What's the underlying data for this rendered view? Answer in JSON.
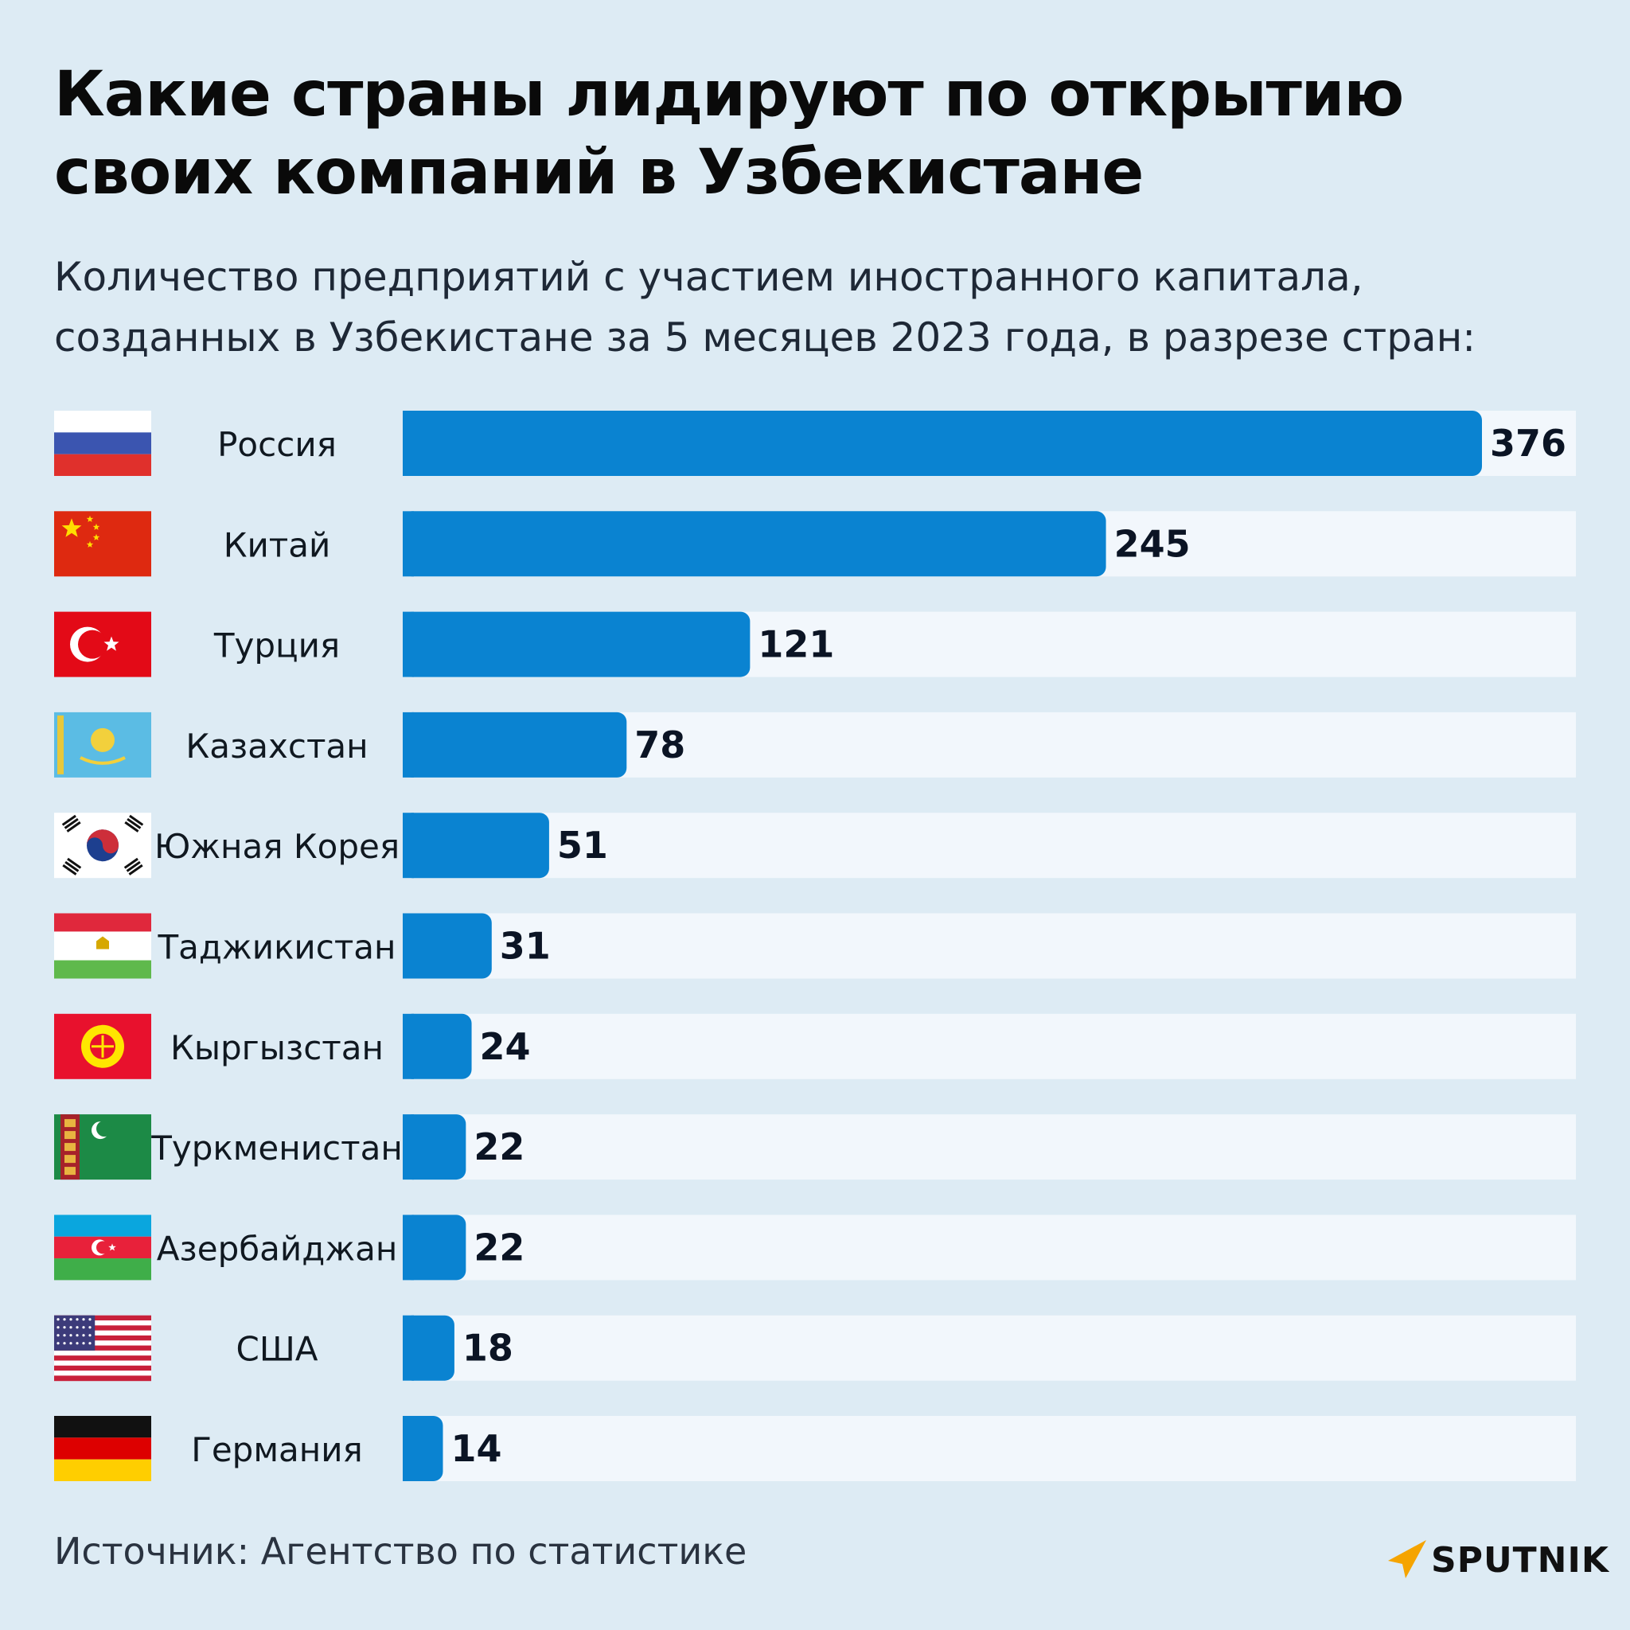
{
  "title": "Какие страны лидируют по открытию своих компаний в Узбекистане",
  "subtitle": "Количество предприятий с участием иностранного капитала, созданных в Узбекистане за 5 месяцев 2023 года, в разрезе стран:",
  "source": "Источник: Агентство по статистике",
  "logo": "SPUTNIK",
  "colors": {
    "background": "#ddebf4",
    "bar": "#0a83d1",
    "track": "#f2f7fc",
    "logo_accent": "#f5a400"
  },
  "chart_data": {
    "type": "bar",
    "orientation": "horizontal",
    "categories": [
      "Россия",
      "Китай",
      "Турция",
      "Казахстан",
      "Южная Корея",
      "Таджикистан",
      "Кыргызстан",
      "Туркменистан",
      "Азербайджан",
      "США",
      "Германия"
    ],
    "values": [
      376,
      245,
      121,
      78,
      51,
      31,
      24,
      22,
      22,
      18,
      14
    ],
    "flags": [
      "russia-flag",
      "china-flag",
      "turkey-flag",
      "kazakhstan-flag",
      "south-korea-flag",
      "tajikistan-flag",
      "kyrgyzstan-flag",
      "turkmenistan-flag",
      "azerbaijan-flag",
      "usa-flag",
      "germany-flag"
    ],
    "data_labels": true,
    "grid": false,
    "legend": "none"
  }
}
